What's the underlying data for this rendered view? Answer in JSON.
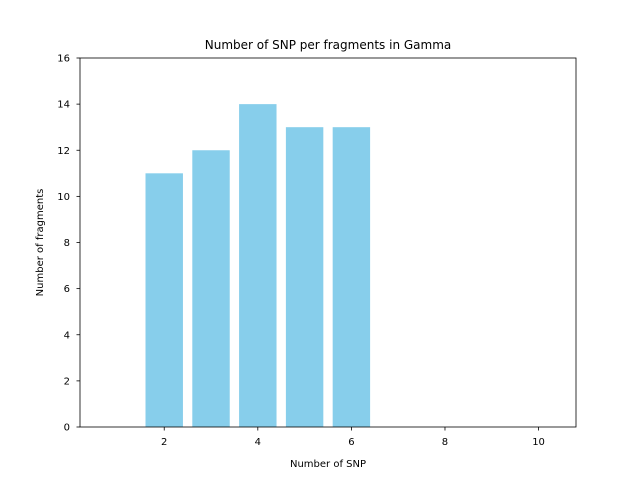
{
  "chart_data": {
    "type": "bar",
    "title": "Number of SNP per fragments in Gamma",
    "xlabel": "Number of SNP",
    "ylabel": "Number of fragments",
    "x": [
      2,
      3,
      4,
      5,
      6
    ],
    "values": [
      11,
      12,
      14,
      13,
      13
    ],
    "xlim": [
      0.2,
      10.8
    ],
    "ylim": [
      0,
      16
    ],
    "xticks": [
      2,
      4,
      6,
      8,
      10
    ],
    "yticks": [
      0,
      2,
      4,
      6,
      8,
      10,
      12,
      14,
      16
    ],
    "bar_color": "#87ceeb",
    "grid": false,
    "legend": "none"
  }
}
